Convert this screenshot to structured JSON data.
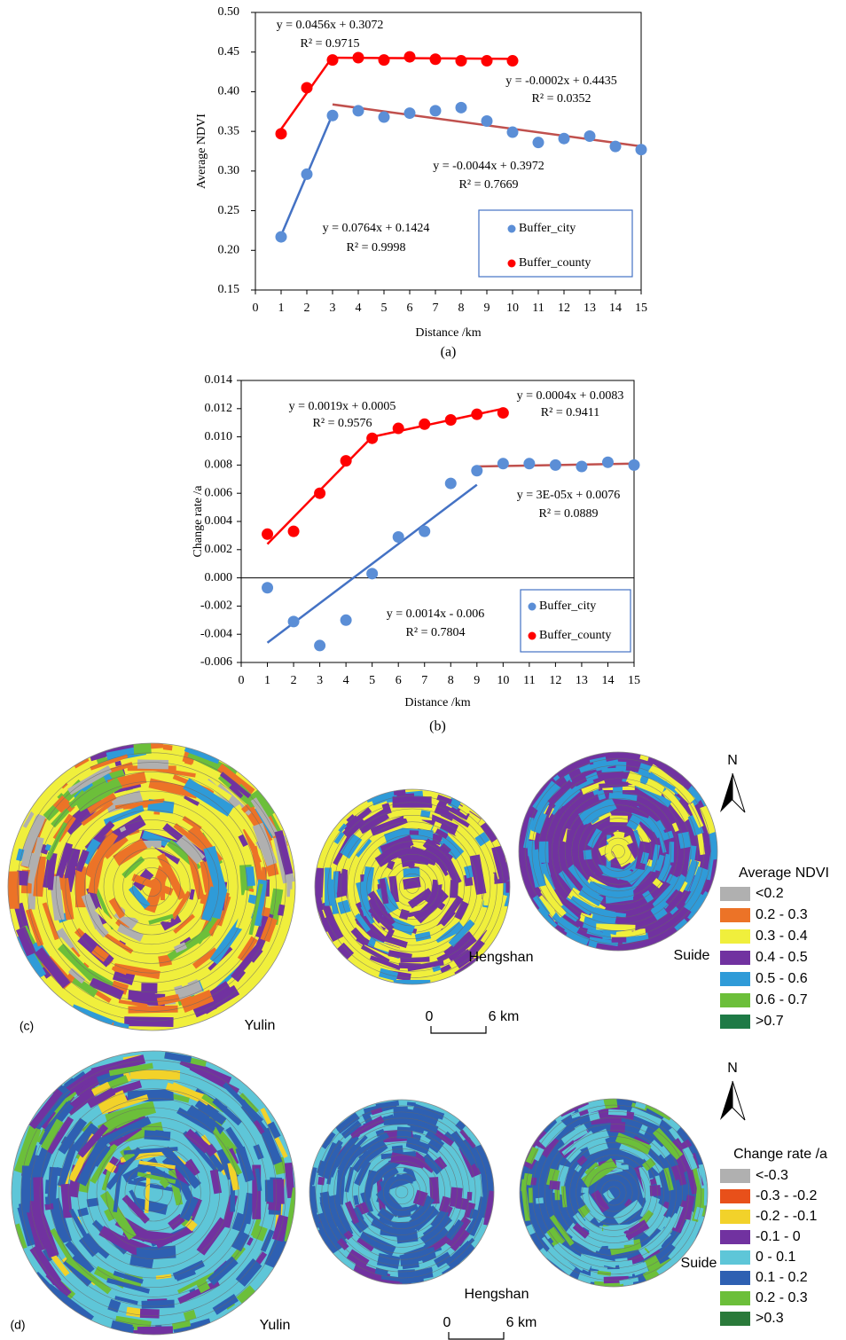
{
  "chart_data": [
    {
      "type": "scatter",
      "x_label": "Distance /km",
      "y_label": "Average NDVI",
      "caption": "(a)",
      "xlim": [
        0,
        15
      ],
      "xticks": [
        0,
        1,
        2,
        3,
        4,
        5,
        6,
        7,
        8,
        9,
        10,
        11,
        12,
        13,
        14,
        15
      ],
      "ylim": [
        0.15,
        0.5
      ],
      "yticks": [
        0.15,
        {
          "value": 0.2,
          "label": "0.20"
        },
        0.25,
        {
          "value": 0.3,
          "label": "0.30"
        },
        0.35,
        {
          "value": 0.4,
          "label": "0.40"
        },
        0.45,
        {
          "value": 0.5,
          "label": "0.50"
        }
      ],
      "series": [
        {
          "name": "Buffer_city",
          "color": "#5b8ed6",
          "x": [
            1,
            2,
            3,
            4,
            5,
            6,
            7,
            8,
            9,
            10,
            11,
            12,
            13,
            14,
            15
          ],
          "values": [
            0.217,
            0.296,
            0.37,
            0.376,
            0.368,
            0.373,
            0.376,
            0.38,
            0.363,
            0.349,
            0.336,
            0.341,
            0.344,
            0.331,
            0.327
          ]
        },
        {
          "name": "Buffer_county",
          "color": "#ff0000",
          "x": [
            1,
            2,
            3,
            4,
            5,
            6,
            7,
            8,
            9,
            10
          ],
          "values": [
            0.347,
            0.405,
            0.44,
            0.443,
            0.44,
            0.444,
            0.441,
            0.439,
            0.439,
            0.439
          ]
        }
      ],
      "trendlines": [
        {
          "x": [
            1,
            3
          ],
          "values": [
            0.2188,
            0.3716
          ],
          "color": "#4472c4"
        },
        {
          "x": [
            3,
            15
          ],
          "values": [
            0.384,
            0.3312
          ],
          "color": "#c0504d"
        },
        {
          "x": [
            1,
            3
          ],
          "values": [
            0.3528,
            0.444
          ],
          "color": "#ff0000"
        },
        {
          "x": [
            3,
            10
          ],
          "values": [
            0.4429,
            0.4415
          ],
          "color": "#ff0000"
        }
      ],
      "annotations": [
        "y = 0.0456x + 0.3072",
        "R² = 0.9715",
        "y = -0.0002x + 0.4435",
        "R² = 0.0352",
        "y = -0.0044x + 0.3972",
        "R² = 0.7669",
        "y = 0.0764x + 0.1424",
        "R² = 0.9998"
      ]
    },
    {
      "type": "scatter",
      "x_label": "Distance /km",
      "y_label": "Change rate /a",
      "caption": "(b)",
      "xlim": [
        0,
        15
      ],
      "xticks": [
        0,
        1,
        2,
        3,
        4,
        5,
        6,
        7,
        8,
        9,
        10,
        11,
        12,
        13,
        14,
        15
      ],
      "ylim": [
        -0.006,
        0.014
      ],
      "yticks": [
        -0.006,
        -0.004,
        -0.002,
        {
          "value": 0,
          "label": "0.000"
        },
        0.002,
        0.004,
        0.006,
        0.008,
        {
          "value": 0.01,
          "label": "0.010"
        },
        0.012,
        0.014
      ],
      "series": [
        {
          "name": "Buffer_city",
          "color": "#5b8ed6",
          "x": [
            1,
            2,
            3,
            4,
            5,
            6,
            7,
            8,
            9,
            10,
            11,
            12,
            13,
            14,
            15
          ],
          "values": [
            -0.0007,
            -0.0031,
            -0.0048,
            -0.003,
            0.0003,
            0.0029,
            0.0033,
            0.0067,
            0.0076,
            0.0081,
            0.0081,
            0.008,
            0.0079,
            0.0082,
            0.008
          ]
        },
        {
          "name": "Buffer_county",
          "color": "#ff0000",
          "x": [
            1,
            2,
            3,
            4,
            5,
            6,
            7,
            8,
            9,
            10
          ],
          "values": [
            0.0031,
            0.0033,
            0.006,
            0.0083,
            0.0099,
            0.0106,
            0.0109,
            0.0112,
            0.0116,
            0.0117
          ]
        }
      ],
      "trendlines": [
        {
          "x": [
            1,
            5
          ],
          "values": [
            0.0024,
            0.01
          ],
          "color": "#ff0000"
        },
        {
          "x": [
            5,
            10
          ],
          "values": [
            0.01,
            0.012
          ],
          "color": "#ff0000"
        },
        {
          "x": [
            1,
            9
          ],
          "values": [
            -0.0046,
            0.0066
          ],
          "color": "#4472c4"
        },
        {
          "x": [
            9,
            15
          ],
          "values": [
            0.0079,
            0.0081
          ],
          "color": "#c0504d"
        }
      ],
      "annotations": [
        "y = 0.0019x + 0.0005",
        "R² = 0.9576",
        "y = 0.0004x + 0.0083",
        "R² = 0.9411",
        "y = 3E-05x + 0.0076",
        "R² = 0.0889",
        "y = 0.0014x - 0.006",
        "R² = 0.7804"
      ]
    }
  ],
  "maps": [
    {
      "panel": "(c)",
      "sites": [
        "Yulin",
        "Hengshan",
        "Suide"
      ],
      "scale": [
        "0",
        "6 km"
      ],
      "north": "N",
      "legend_title": "Average NDVI",
      "legend": [
        {
          "label": "<0.2",
          "color": "#b0b0b0"
        },
        {
          "label": "0.2 - 0.3",
          "color": "#ec7327"
        },
        {
          "label": "0.3 - 0.4",
          "color": "#f0ef3c"
        },
        {
          "label": "0.4 - 0.5",
          "color": "#7132a0"
        },
        {
          "label": "0.5 - 0.6",
          "color": "#2f9bd8"
        },
        {
          "label": "0.6 - 0.7",
          "color": "#6cbf3a"
        },
        {
          "label": ">0.7",
          "color": "#1e7a46"
        }
      ]
    },
    {
      "panel": "(d)",
      "sites": [
        "Yulin",
        "Hengshan",
        "Suide"
      ],
      "scale": [
        "0",
        "6 km"
      ],
      "north": "N",
      "legend_title": "Change rate /a",
      "legend": [
        {
          "label": "<-0.3",
          "color": "#b0b0b0"
        },
        {
          "label": "-0.3 - -0.2",
          "color": "#e8501a"
        },
        {
          "label": "-0.2 - -0.1",
          "color": "#f2d22a"
        },
        {
          "label": "-0.1 - 0",
          "color": "#7132a0"
        },
        {
          "label": "0 - 0.1",
          "color": "#5ec6d8"
        },
        {
          "label": "0.1 - 0.2",
          "color": "#2e60b2"
        },
        {
          "label": "0.2 - 0.3",
          "color": "#6cbf3a"
        },
        {
          "label": ">0.3",
          "color": "#2a7a3a"
        }
      ]
    }
  ]
}
